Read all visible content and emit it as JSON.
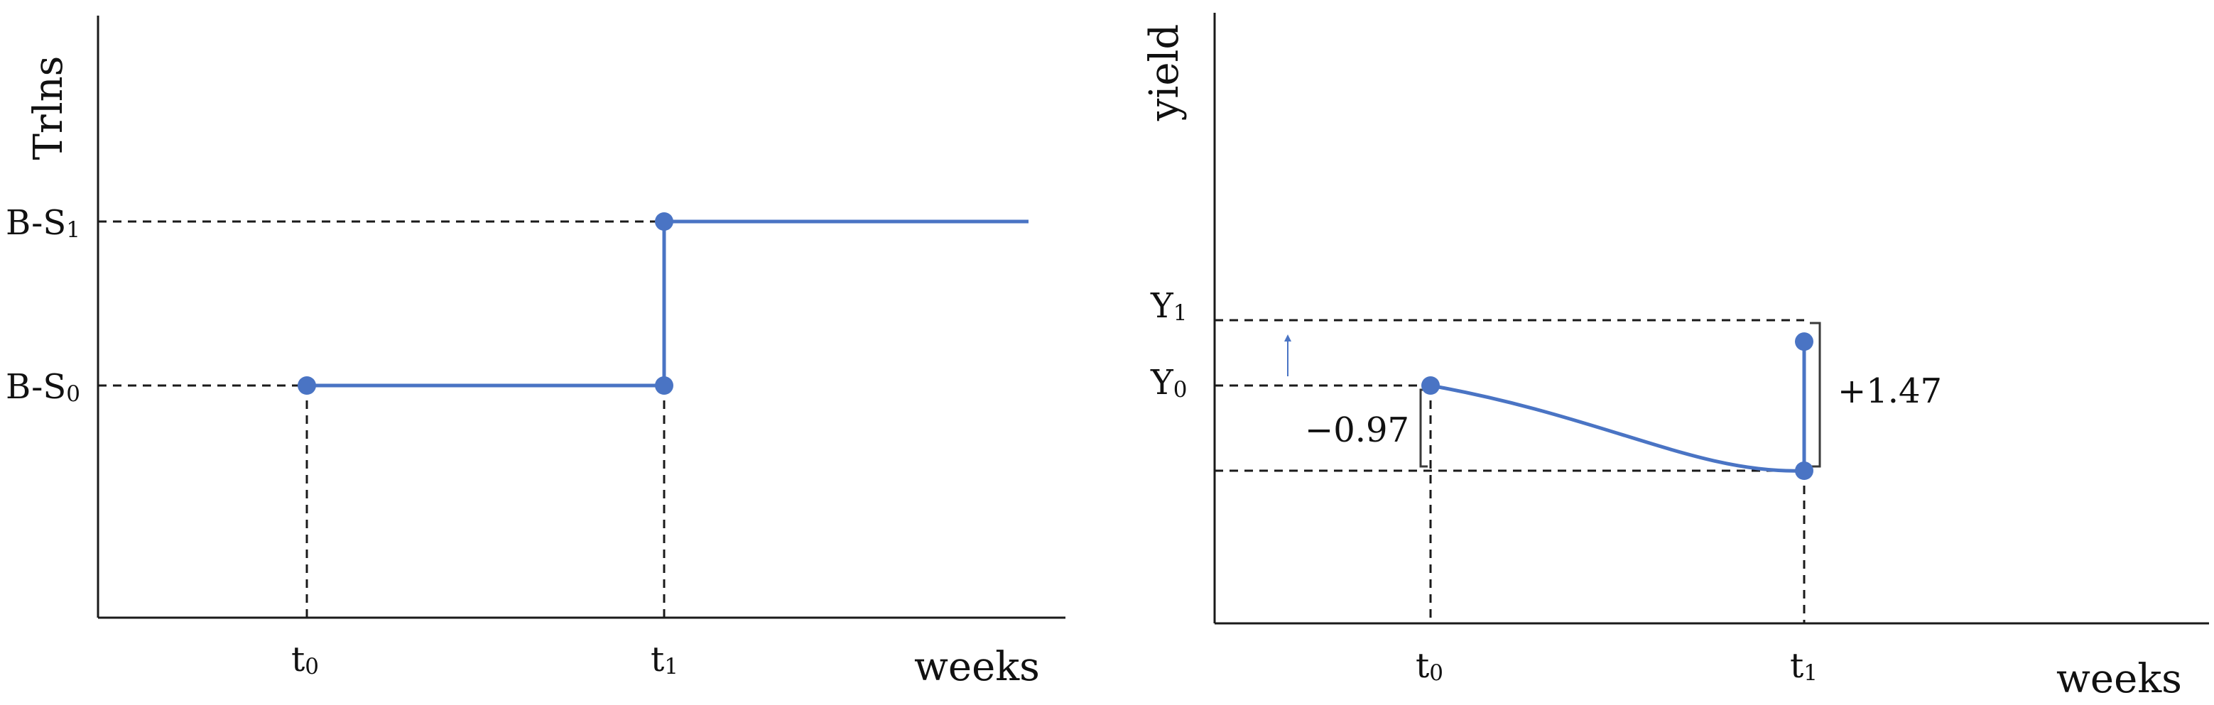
{
  "colors": {
    "series": "#4a74c4",
    "axis": "#1a1a1a"
  },
  "chart_data": [
    {
      "type": "line",
      "step": true,
      "ylabel": "Trlns",
      "xlabel": "weeks",
      "x_ticks": [
        {
          "base": "t",
          "sub": "0",
          "x": 0
        },
        {
          "base": "t",
          "sub": "1",
          "x": 1
        }
      ],
      "y_ticks": [
        {
          "base": "B-S",
          "sub": "0",
          "y": 0
        },
        {
          "base": "B-S",
          "sub": "1",
          "y": 1
        }
      ],
      "series": [
        {
          "values": [
            {
              "x": 0,
              "y": 0
            },
            {
              "x": 1,
              "y": 0
            },
            {
              "x": 1,
              "y": 1
            },
            {
              "x": 2,
              "y": 1
            }
          ],
          "markers": [
            {
              "x": 0,
              "y": 0
            },
            {
              "x": 1,
              "y": 0
            },
            {
              "x": 1,
              "y": 1
            }
          ]
        }
      ],
      "guides": "dashed lines from markers to both axes"
    },
    {
      "type": "line",
      "ylabel": "yield",
      "xlabel": "weeks",
      "x_ticks": [
        {
          "base": "t",
          "sub": "0",
          "x": 0
        },
        {
          "base": "t",
          "sub": "1",
          "x": 1
        }
      ],
      "y_ticks": [
        {
          "base": "Y",
          "sub": "0",
          "y": 0
        },
        {
          "base": "Y",
          "sub": "1",
          "y": 0.5
        }
      ],
      "series": [
        {
          "values": [
            {
              "x": 0,
              "y": 0
            },
            {
              "x": 1,
              "y": -0.97
            },
            {
              "x": 1,
              "y": 0.5
            }
          ],
          "markers": [
            {
              "x": 0,
              "y": 0
            },
            {
              "x": 1,
              "y": -0.97
            },
            {
              "x": 1,
              "y": 0.5
            }
          ]
        }
      ],
      "annotations": [
        {
          "text": "−0.97",
          "meaning": "drop in yield from Y0 to the t1 low"
        },
        {
          "text": "+1.47",
          "meaning": "rise in yield at t1 up to Y1"
        }
      ],
      "arrow": "up"
    }
  ]
}
